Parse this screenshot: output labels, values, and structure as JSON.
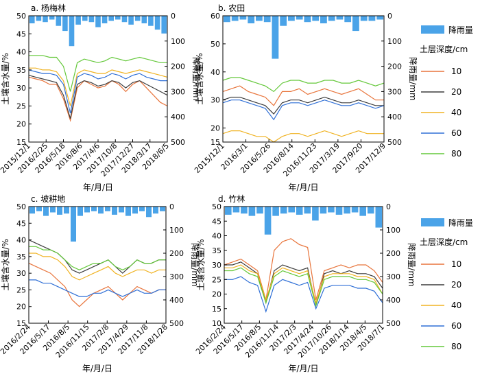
{
  "legend": {
    "rain_label": "降雨量",
    "depth_title": "土层深度/cm",
    "depths": [
      "10",
      "20",
      "40",
      "60",
      "80"
    ]
  },
  "colors": {
    "rain": "#4aa3e8",
    "s10": "#e8743b",
    "s20": "#3c3c3c",
    "s40": "#f0b323",
    "s60": "#2f6fd6",
    "s80": "#64c83a"
  },
  "chart_data": [
    {
      "type": "line",
      "title": "a. 杨梅林",
      "xlabel": "年/月/日",
      "ylabel": "土壤含水量/%",
      "y2label": "降雨量/mm",
      "ylim": [
        15,
        50
      ],
      "y2lim": [
        0,
        500
      ],
      "y2_inverted": true,
      "yticks": [
        15,
        20,
        25,
        30,
        35,
        40,
        45,
        50
      ],
      "y2ticks": [
        0,
        100,
        200,
        300,
        400,
        500
      ],
      "x_ticks": [
        "2015/12/1",
        "2016/2/25",
        "2016/5/18",
        "2016/8/6",
        "2017/4/6",
        "2017/10/8",
        "2017/12/27",
        "2018/3/17",
        "2018/6/5"
      ],
      "series": [
        {
          "name": "10",
          "values": [
            33,
            32.5,
            32,
            31,
            31,
            27,
            21,
            30,
            32,
            31,
            30,
            30.5,
            32,
            31,
            29,
            31,
            32,
            30,
            28,
            26,
            25
          ]
        },
        {
          "name": "20",
          "values": [
            33.5,
            33,
            32.5,
            32,
            31.5,
            28,
            21.5,
            31,
            32,
            31.5,
            30.5,
            31,
            32,
            31.5,
            30,
            31.5,
            32,
            31,
            30,
            29,
            28
          ]
        },
        {
          "name": "40",
          "values": [
            35.5,
            35.5,
            35,
            35,
            34.5,
            32,
            25,
            34,
            35,
            34.5,
            34,
            34,
            35,
            34.5,
            34,
            34.5,
            35,
            34.5,
            34,
            33.5,
            33
          ]
        },
        {
          "name": "60",
          "values": [
            35,
            34.5,
            34,
            34,
            33.5,
            31,
            23,
            33,
            34,
            33.5,
            32.5,
            33,
            34,
            33.5,
            32.5,
            33.5,
            34,
            33,
            32.5,
            32,
            32
          ]
        },
        {
          "name": "80",
          "values": [
            39,
            39,
            39,
            38.5,
            38.5,
            36,
            29,
            37,
            38,
            37.5,
            37,
            37.5,
            38.5,
            38,
            37.5,
            38,
            38.5,
            38,
            37.5,
            37,
            37
          ]
        }
      ],
      "rain": [
        30,
        20,
        25,
        15,
        40,
        60,
        120,
        35,
        20,
        25,
        45,
        30,
        20,
        15,
        25,
        35,
        20,
        30,
        40,
        55,
        70
      ]
    },
    {
      "type": "line",
      "title": "b. 农田",
      "xlabel": "年/月/日",
      "ylabel": "土壤含水量/%",
      "y2label": "降雨量/mm",
      "ylim": [
        15,
        60
      ],
      "y2lim": [
        0,
        500
      ],
      "y2_inverted": true,
      "yticks": [
        15,
        20,
        30,
        40,
        50,
        60
      ],
      "y2ticks": [
        0,
        100,
        200,
        300,
        400,
        500
      ],
      "x_ticks": [
        "2015/12/1",
        "2016/3/1",
        "2016/5/26",
        "2016/8/14",
        "2016/11/23",
        "2017/3/19",
        "2017/9/20",
        "2017/12/9"
      ],
      "series": [
        {
          "name": "10",
          "values": [
            33,
            34,
            35,
            33,
            32,
            31,
            28,
            33,
            33,
            34,
            32,
            33,
            34,
            33,
            32,
            33,
            34,
            32,
            30,
            30
          ]
        },
        {
          "name": "20",
          "values": [
            30,
            31,
            31,
            30,
            29,
            28,
            25,
            29,
            30,
            30,
            29,
            30,
            31,
            30,
            29,
            29,
            30,
            29,
            28,
            28
          ]
        },
        {
          "name": "40",
          "values": [
            18,
            19,
            19,
            18,
            17,
            17,
            15,
            17,
            18,
            18,
            17,
            18,
            19,
            18,
            17,
            18,
            19,
            18,
            18,
            18
          ]
        },
        {
          "name": "60",
          "values": [
            29,
            30,
            30,
            29,
            28,
            27,
            23,
            28,
            29,
            29,
            28,
            29,
            30,
            29,
            28,
            28,
            29,
            28,
            27,
            28
          ]
        },
        {
          "name": "80",
          "values": [
            37,
            38,
            38,
            37,
            36,
            35,
            33,
            36,
            37,
            37,
            36,
            36,
            37,
            37,
            36,
            36,
            37,
            36,
            35,
            36
          ]
        }
      ],
      "rain": [
        25,
        20,
        15,
        30,
        20,
        25,
        170,
        40,
        20,
        15,
        25,
        20,
        30,
        20,
        15,
        25,
        60,
        20,
        20,
        15
      ]
    },
    {
      "type": "line",
      "title": "c. 坡耕地",
      "xlabel": "年/月/日",
      "ylabel": "土壤含水量/%",
      "y2label": "降雨量/mm",
      "ylim": [
        15,
        50
      ],
      "y2lim": [
        0,
        500
      ],
      "y2_inverted": true,
      "yticks": [
        15,
        20,
        25,
        30,
        35,
        40,
        45,
        50
      ],
      "y2ticks": [
        0,
        100,
        200,
        300,
        400,
        500
      ],
      "x_ticks": [
        "2016/2/24",
        "2016/5/17",
        "2016/8/5",
        "2016/11/15",
        "2017/2/8",
        "2017/4/29",
        "2017/11/8",
        "2018/1/28"
      ],
      "series": [
        {
          "name": "10",
          "values": [
            33,
            32,
            31,
            30,
            28,
            26,
            22,
            20,
            22,
            24,
            25,
            26,
            24,
            22,
            24,
            26,
            25,
            24,
            25,
            25
          ]
        },
        {
          "name": "20",
          "values": [
            40,
            39,
            38,
            37,
            36,
            34,
            31,
            30,
            31,
            32,
            33,
            34,
            32,
            30,
            32,
            34,
            33,
            33,
            34,
            34
          ]
        },
        {
          "name": "40",
          "values": [
            36,
            36,
            35,
            35,
            34,
            32,
            29,
            28,
            29,
            30,
            31,
            32,
            30,
            29,
            30,
            31,
            31,
            30,
            31,
            31
          ]
        },
        {
          "name": "60",
          "values": [
            28,
            28,
            27,
            27,
            26,
            25,
            24,
            23,
            23,
            24,
            24,
            25,
            24,
            23,
            24,
            25,
            24,
            24,
            25,
            25
          ]
        },
        {
          "name": "80",
          "values": [
            38,
            38,
            37,
            37,
            36,
            34,
            32,
            31,
            32,
            33,
            33,
            34,
            32,
            31,
            32,
            34,
            33,
            33,
            34,
            34
          ]
        }
      ],
      "rain": [
        30,
        20,
        40,
        25,
        35,
        30,
        150,
        40,
        25,
        20,
        30,
        20,
        35,
        25,
        40,
        30,
        20,
        45,
        30,
        20
      ]
    },
    {
      "type": "line",
      "title": "d. 竹林",
      "xlabel": "年/月/日",
      "ylabel": "土壤含水量/%",
      "y2label": "降雨量/mm",
      "ylim": [
        10,
        50
      ],
      "y2lim": [
        0,
        500
      ],
      "y2_inverted": true,
      "yticks": [
        10,
        15,
        20,
        25,
        30,
        35,
        40,
        45,
        50
      ],
      "y2ticks": [
        0,
        100,
        200,
        300,
        400,
        500
      ],
      "x_ticks": [
        "2016/2/24",
        "2016/5/17",
        "2016/8/5",
        "2016/11/14",
        "2017/2/3",
        "2017/4/24",
        "2017/10/26",
        "2018/1/14",
        "2018/4/5",
        "2018/7/1"
      ],
      "series": [
        {
          "name": "10",
          "values": [
            30,
            31,
            32,
            30,
            28,
            18,
            35,
            38,
            39,
            37,
            36,
            18,
            28,
            29,
            30,
            29,
            30,
            30,
            28,
            24
          ]
        },
        {
          "name": "20",
          "values": [
            30,
            30,
            31,
            29,
            27,
            17,
            28,
            30,
            29,
            28,
            29,
            16,
            27,
            28,
            27,
            28,
            27,
            27,
            26,
            22
          ]
        },
        {
          "name": "40",
          "values": [
            29,
            29,
            30,
            28,
            27,
            18,
            27,
            29,
            28,
            27,
            28,
            17,
            26,
            27,
            27,
            27,
            26,
            26,
            25,
            20
          ]
        },
        {
          "name": "60",
          "values": [
            25,
            25,
            26,
            24,
            23,
            14,
            23,
            25,
            24,
            23,
            24,
            15,
            22,
            23,
            23,
            23,
            22,
            22,
            21,
            17
          ]
        },
        {
          "name": "80",
          "values": [
            28,
            28,
            29,
            27,
            26,
            17,
            26,
            28,
            27,
            26,
            27,
            16,
            25,
            26,
            26,
            26,
            25,
            25,
            24,
            20
          ]
        }
      ],
      "rain": [
        35,
        25,
        30,
        40,
        30,
        120,
        40,
        30,
        25,
        35,
        30,
        60,
        30,
        25,
        35,
        30,
        25,
        40,
        30,
        90
      ]
    }
  ]
}
